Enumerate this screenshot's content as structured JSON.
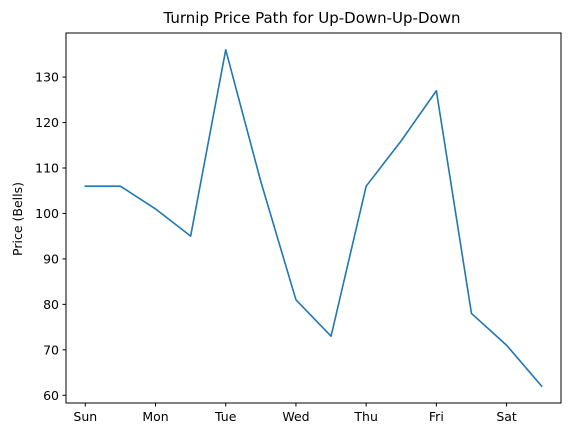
{
  "chart_data": {
    "type": "line",
    "title": "Turnip Price Path for Up-Down-Up-Down",
    "xlabel": "",
    "ylabel": "Price (Bells)",
    "x_tick_labels": [
      "Sun",
      "Mon",
      "Tue",
      "Wed",
      "Thu",
      "Fri",
      "Sat"
    ],
    "y_ticks": [
      60,
      70,
      80,
      90,
      100,
      110,
      120,
      130
    ],
    "ylim": [
      58.3,
      139.7
    ],
    "xlim": [
      -0.55,
      13.55
    ],
    "grid": false,
    "series": [
      {
        "color": "#1f77b4",
        "x": [
          0,
          1,
          2,
          3,
          4,
          5,
          6,
          7,
          8,
          9,
          10,
          11,
          12,
          13
        ],
        "values": [
          106,
          106,
          101,
          95,
          136,
          107,
          81,
          73,
          106,
          116,
          127,
          78,
          71,
          62
        ]
      }
    ]
  }
}
